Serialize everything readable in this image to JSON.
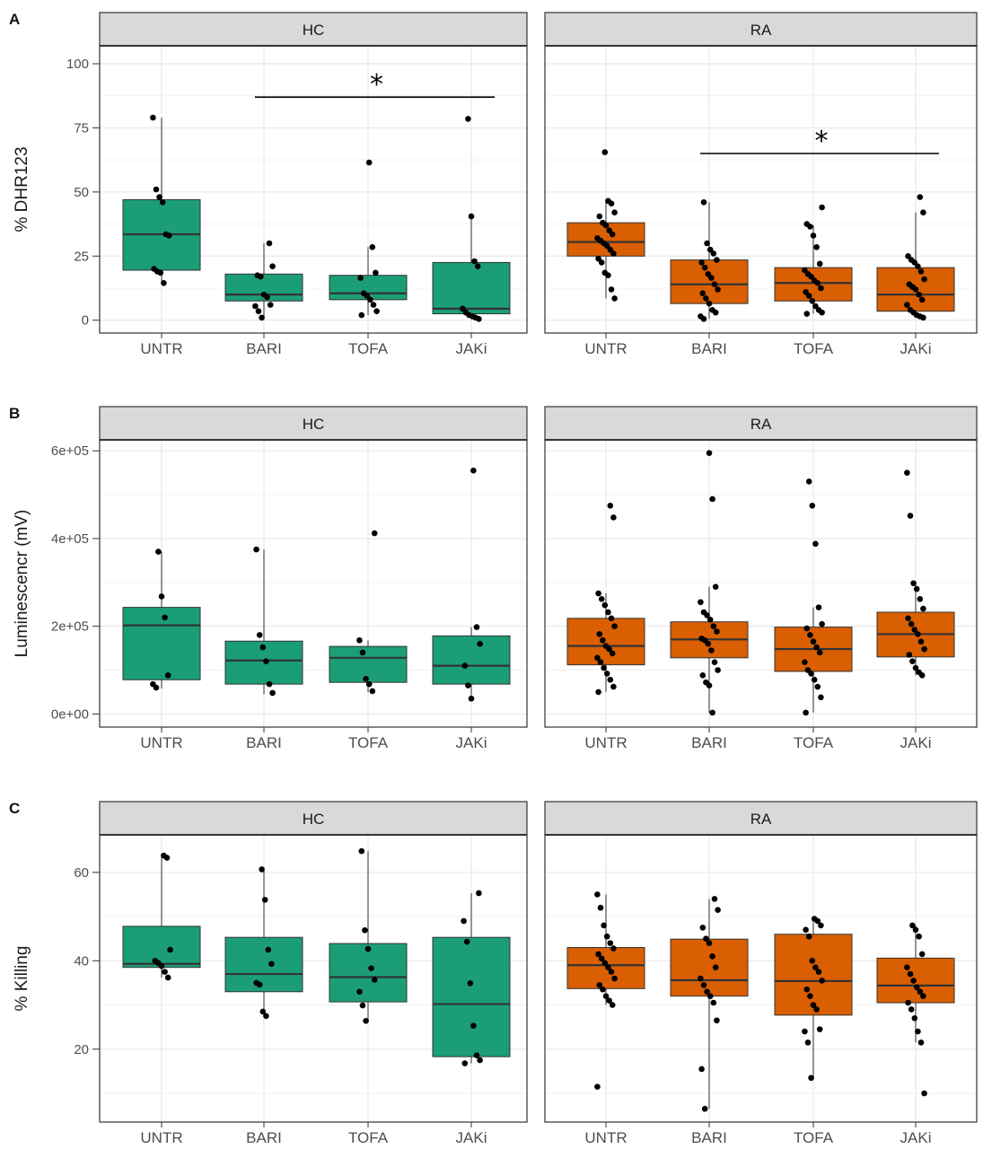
{
  "strip_labels": [
    "HC",
    "RA"
  ],
  "colors": {
    "HC": "#1b9e77",
    "RA": "#d95f02",
    "strip_fill": "#d9d9d9",
    "grid": "#ebebeb",
    "point": "#000000",
    "border": "#333333"
  },
  "chart_data": [
    {
      "panel": "A",
      "type": "box",
      "ylabel": "% DHR123",
      "categories": [
        "UNTR",
        "BARI",
        "TOFA",
        "JAKi"
      ],
      "facets": [
        "HC",
        "RA"
      ],
      "yticks": [
        0,
        25,
        50,
        75,
        100
      ],
      "ytick_labels": [
        "0",
        "25",
        "50",
        "75",
        "100"
      ],
      "ylim": [
        -5,
        107
      ],
      "grid": true,
      "boxes": {
        "HC": [
          {
            "category": "UNTR",
            "q1": 19.5,
            "median": 33.5,
            "q3": 47.0,
            "whisker_low": 14.5,
            "whisker_high": 79.0
          },
          {
            "category": "BARI",
            "q1": 7.5,
            "median": 10.0,
            "q3": 18.0,
            "whisker_low": 1.0,
            "whisker_high": 30.0
          },
          {
            "category": "TOFA",
            "q1": 8.0,
            "median": 10.5,
            "q3": 17.5,
            "whisker_low": 2.0,
            "whisker_high": 28.5
          },
          {
            "category": "JAKi",
            "q1": 2.5,
            "median": 4.5,
            "q3": 22.5,
            "whisker_low": 0.5,
            "whisker_high": 40.5
          }
        ],
        "RA": [
          {
            "category": "UNTR",
            "q1": 25.0,
            "median": 30.5,
            "q3": 38.0,
            "whisker_low": 8.5,
            "whisker_high": 46.5
          },
          {
            "category": "BARI",
            "q1": 6.5,
            "median": 14.0,
            "q3": 23.5,
            "whisker_low": 0.5,
            "whisker_high": 46.0
          },
          {
            "category": "TOFA",
            "q1": 7.5,
            "median": 14.5,
            "q3": 20.5,
            "whisker_low": 2.5,
            "whisker_high": 37.0
          },
          {
            "category": "JAKi",
            "q1": 3.5,
            "median": 10.0,
            "q3": 20.5,
            "whisker_low": 1.0,
            "whisker_high": 42.0
          }
        ]
      },
      "points": {
        "HC": [
          [
            79,
            51,
            48,
            46,
            33.5,
            33,
            20,
            19,
            18.5,
            14.5
          ],
          [
            30,
            21,
            17.5,
            17,
            10,
            9,
            6,
            5.5,
            3.5,
            1
          ],
          [
            61.5,
            28.5,
            18.5,
            16.5,
            10.5,
            9.5,
            8,
            6,
            3.5,
            2
          ],
          [
            78.5,
            40.5,
            23,
            21,
            4.5,
            3,
            2,
            1.5,
            1,
            0.5
          ]
        ],
        "RA": [
          [
            65.5,
            46.5,
            45.5,
            42,
            40.5,
            38,
            37,
            35,
            33.5,
            32,
            31,
            30,
            29,
            27.5,
            26,
            24,
            22.5,
            18.5,
            17.5,
            12,
            8.5
          ],
          [
            46,
            30,
            27.5,
            26,
            23.5,
            22.5,
            20.5,
            18,
            16.5,
            14,
            12,
            10.5,
            8.5,
            6.5,
            4,
            3,
            1.5,
            0.5
          ],
          [
            44,
            37.5,
            36.5,
            33,
            28.5,
            22,
            19.5,
            18,
            17,
            15.5,
            14.5,
            12.5,
            11,
            9.5,
            7.5,
            5.5,
            4,
            3,
            2.5
          ],
          [
            48,
            42,
            25,
            23.5,
            22.5,
            21,
            19,
            16,
            14,
            13,
            12,
            10,
            8,
            6,
            4,
            3,
            2,
            1.5,
            1
          ]
        ]
      },
      "significance": [
        {
          "facet": "HC",
          "from": "BARI",
          "to": "JAKi",
          "y": 87,
          "label": "*"
        },
        {
          "facet": "RA",
          "from": "BARI",
          "to": "JAKi",
          "y": 65,
          "label": "*"
        }
      ]
    },
    {
      "panel": "B",
      "type": "box",
      "ylabel": "Luminescencr (mV)",
      "categories": [
        "UNTR",
        "BARI",
        "TOFA",
        "JAKi"
      ],
      "facets": [
        "HC",
        "RA"
      ],
      "yticks": [
        0,
        200000,
        400000,
        600000
      ],
      "ytick_labels": [
        "0e+00",
        "2e+05",
        "4e+05",
        "6e+05"
      ],
      "ylim": [
        -30000,
        625000
      ],
      "grid": true,
      "boxes": {
        "HC": [
          {
            "category": "UNTR",
            "q1": 78000,
            "median": 202000,
            "q3": 243000,
            "whisker_low": 58000,
            "whisker_high": 370000
          },
          {
            "category": "BARI",
            "q1": 68000,
            "median": 122000,
            "q3": 166000,
            "whisker_low": 45000,
            "whisker_high": 375000
          },
          {
            "category": "TOFA",
            "q1": 72000,
            "median": 128000,
            "q3": 154000,
            "whisker_low": 50000,
            "whisker_high": 168000
          },
          {
            "category": "JAKi",
            "q1": 68000,
            "median": 110000,
            "q3": 178000,
            "whisker_low": 33000,
            "whisker_high": 198000
          }
        ],
        "RA": [
          {
            "category": "UNTR",
            "q1": 112000,
            "median": 155000,
            "q3": 218000,
            "whisker_low": 50000,
            "whisker_high": 275000
          },
          {
            "category": "BARI",
            "q1": 128000,
            "median": 170000,
            "q3": 210000,
            "whisker_low": 3000,
            "whisker_high": 290000
          },
          {
            "category": "TOFA",
            "q1": 97000,
            "median": 148000,
            "q3": 198000,
            "whisker_low": 3000,
            "whisker_high": 243000
          },
          {
            "category": "JAKi",
            "q1": 130000,
            "median": 182000,
            "q3": 232000,
            "whisker_low": 88000,
            "whisker_high": 298000
          }
        ]
      },
      "points": {
        "HC": [
          [
            370000,
            268000,
            220000,
            88000,
            68000,
            60000
          ],
          [
            375000,
            180000,
            152000,
            120000,
            68000,
            48000
          ],
          [
            412000,
            168000,
            140000,
            80000,
            68000,
            52000
          ],
          [
            555000,
            198000,
            160000,
            110000,
            65000,
            35000
          ]
        ],
        "RA": [
          [
            475000,
            448000,
            275000,
            262000,
            248000,
            232000,
            218000,
            200000,
            182000,
            168000,
            155000,
            148000,
            138000,
            128000,
            118000,
            105000,
            92000,
            78000,
            62000,
            50000
          ],
          [
            595000,
            490000,
            290000,
            255000,
            232000,
            225000,
            215000,
            200000,
            188000,
            172000,
            168000,
            160000,
            145000,
            118000,
            100000,
            88000,
            72000,
            65000,
            3000
          ],
          [
            530000,
            475000,
            388000,
            243000,
            205000,
            195000,
            180000,
            165000,
            152000,
            140000,
            118000,
            100000,
            92000,
            78000,
            62000,
            38000,
            3000
          ],
          [
            550000,
            452000,
            298000,
            285000,
            262000,
            240000,
            218000,
            205000,
            192000,
            182000,
            165000,
            148000,
            135000,
            120000,
            105000,
            95000,
            88000
          ]
        ]
      },
      "significance": []
    },
    {
      "panel": "C",
      "type": "box",
      "ylabel": "% Killing",
      "categories": [
        "UNTR",
        "BARI",
        "TOFA",
        "JAKi"
      ],
      "facets": [
        "HC",
        "RA"
      ],
      "yticks": [
        20,
        40,
        60
      ],
      "ytick_labels": [
        "20",
        "40",
        "60"
      ],
      "ylim": [
        3.5,
        68.5
      ],
      "grid": true,
      "boxes": {
        "HC": [
          {
            "category": "UNTR",
            "q1": 38.5,
            "median": 39.3,
            "q3": 47.8,
            "whisker_low": 36.2,
            "whisker_high": 63.5
          },
          {
            "category": "BARI",
            "q1": 33.0,
            "median": 37.0,
            "q3": 45.3,
            "whisker_low": 27.5,
            "whisker_high": 60.7
          },
          {
            "category": "TOFA",
            "q1": 30.7,
            "median": 36.3,
            "q3": 43.9,
            "whisker_low": 26.4,
            "whisker_high": 64.8
          },
          {
            "category": "JAKi",
            "q1": 18.3,
            "median": 30.2,
            "q3": 45.3,
            "whisker_low": 16.8,
            "whisker_high": 55.3
          }
        ],
        "RA": [
          {
            "category": "UNTR",
            "q1": 33.7,
            "median": 39.0,
            "q3": 43.0,
            "whisker_low": 30.0,
            "whisker_high": 55.0
          },
          {
            "category": "BARI",
            "q1": 32.0,
            "median": 35.6,
            "q3": 44.9,
            "whisker_low": 6.5,
            "whisker_high": 54.0
          },
          {
            "category": "TOFA",
            "q1": 27.7,
            "median": 35.4,
            "q3": 46.0,
            "whisker_low": 13.5,
            "whisker_high": 49.5
          },
          {
            "category": "JAKi",
            "q1": 30.5,
            "median": 34.4,
            "q3": 40.6,
            "whisker_low": 21.5,
            "whisker_high": 48.0
          }
        ]
      },
      "points": {
        "HC": [
          [
            63.8,
            63.3,
            42.5,
            40,
            39.5,
            38.8,
            37.5,
            36.2
          ],
          [
            60.7,
            53.8,
            42.5,
            39.3,
            35,
            34.6,
            28.5,
            27.5
          ],
          [
            64.8,
            46.9,
            42.7,
            38.3,
            35.7,
            33,
            29.9,
            26.4
          ],
          [
            55.3,
            49,
            44.3,
            34.9,
            25.3,
            18.6,
            17.5,
            16.8
          ]
        ],
        "RA": [
          [
            55,
            52,
            48,
            45.5,
            44,
            42.8,
            41.5,
            40.5,
            39.5,
            38.5,
            37.5,
            36,
            34.5,
            33.5,
            32,
            31,
            30,
            11.5
          ],
          [
            54,
            51.5,
            47.5,
            45,
            44,
            41,
            38.5,
            36,
            34.5,
            33,
            32,
            30.5,
            26.5,
            15.5,
            6.5
          ],
          [
            49.5,
            49,
            48,
            47,
            45.5,
            40,
            38.5,
            37.5,
            35.5,
            33.5,
            32,
            30,
            29,
            24.5,
            24,
            21.5,
            13.5
          ],
          [
            48,
            47,
            45.5,
            41.5,
            38.5,
            37,
            35.5,
            34,
            33,
            32,
            30.5,
            29,
            27,
            24,
            21.5,
            10
          ]
        ]
      },
      "significance": []
    }
  ]
}
